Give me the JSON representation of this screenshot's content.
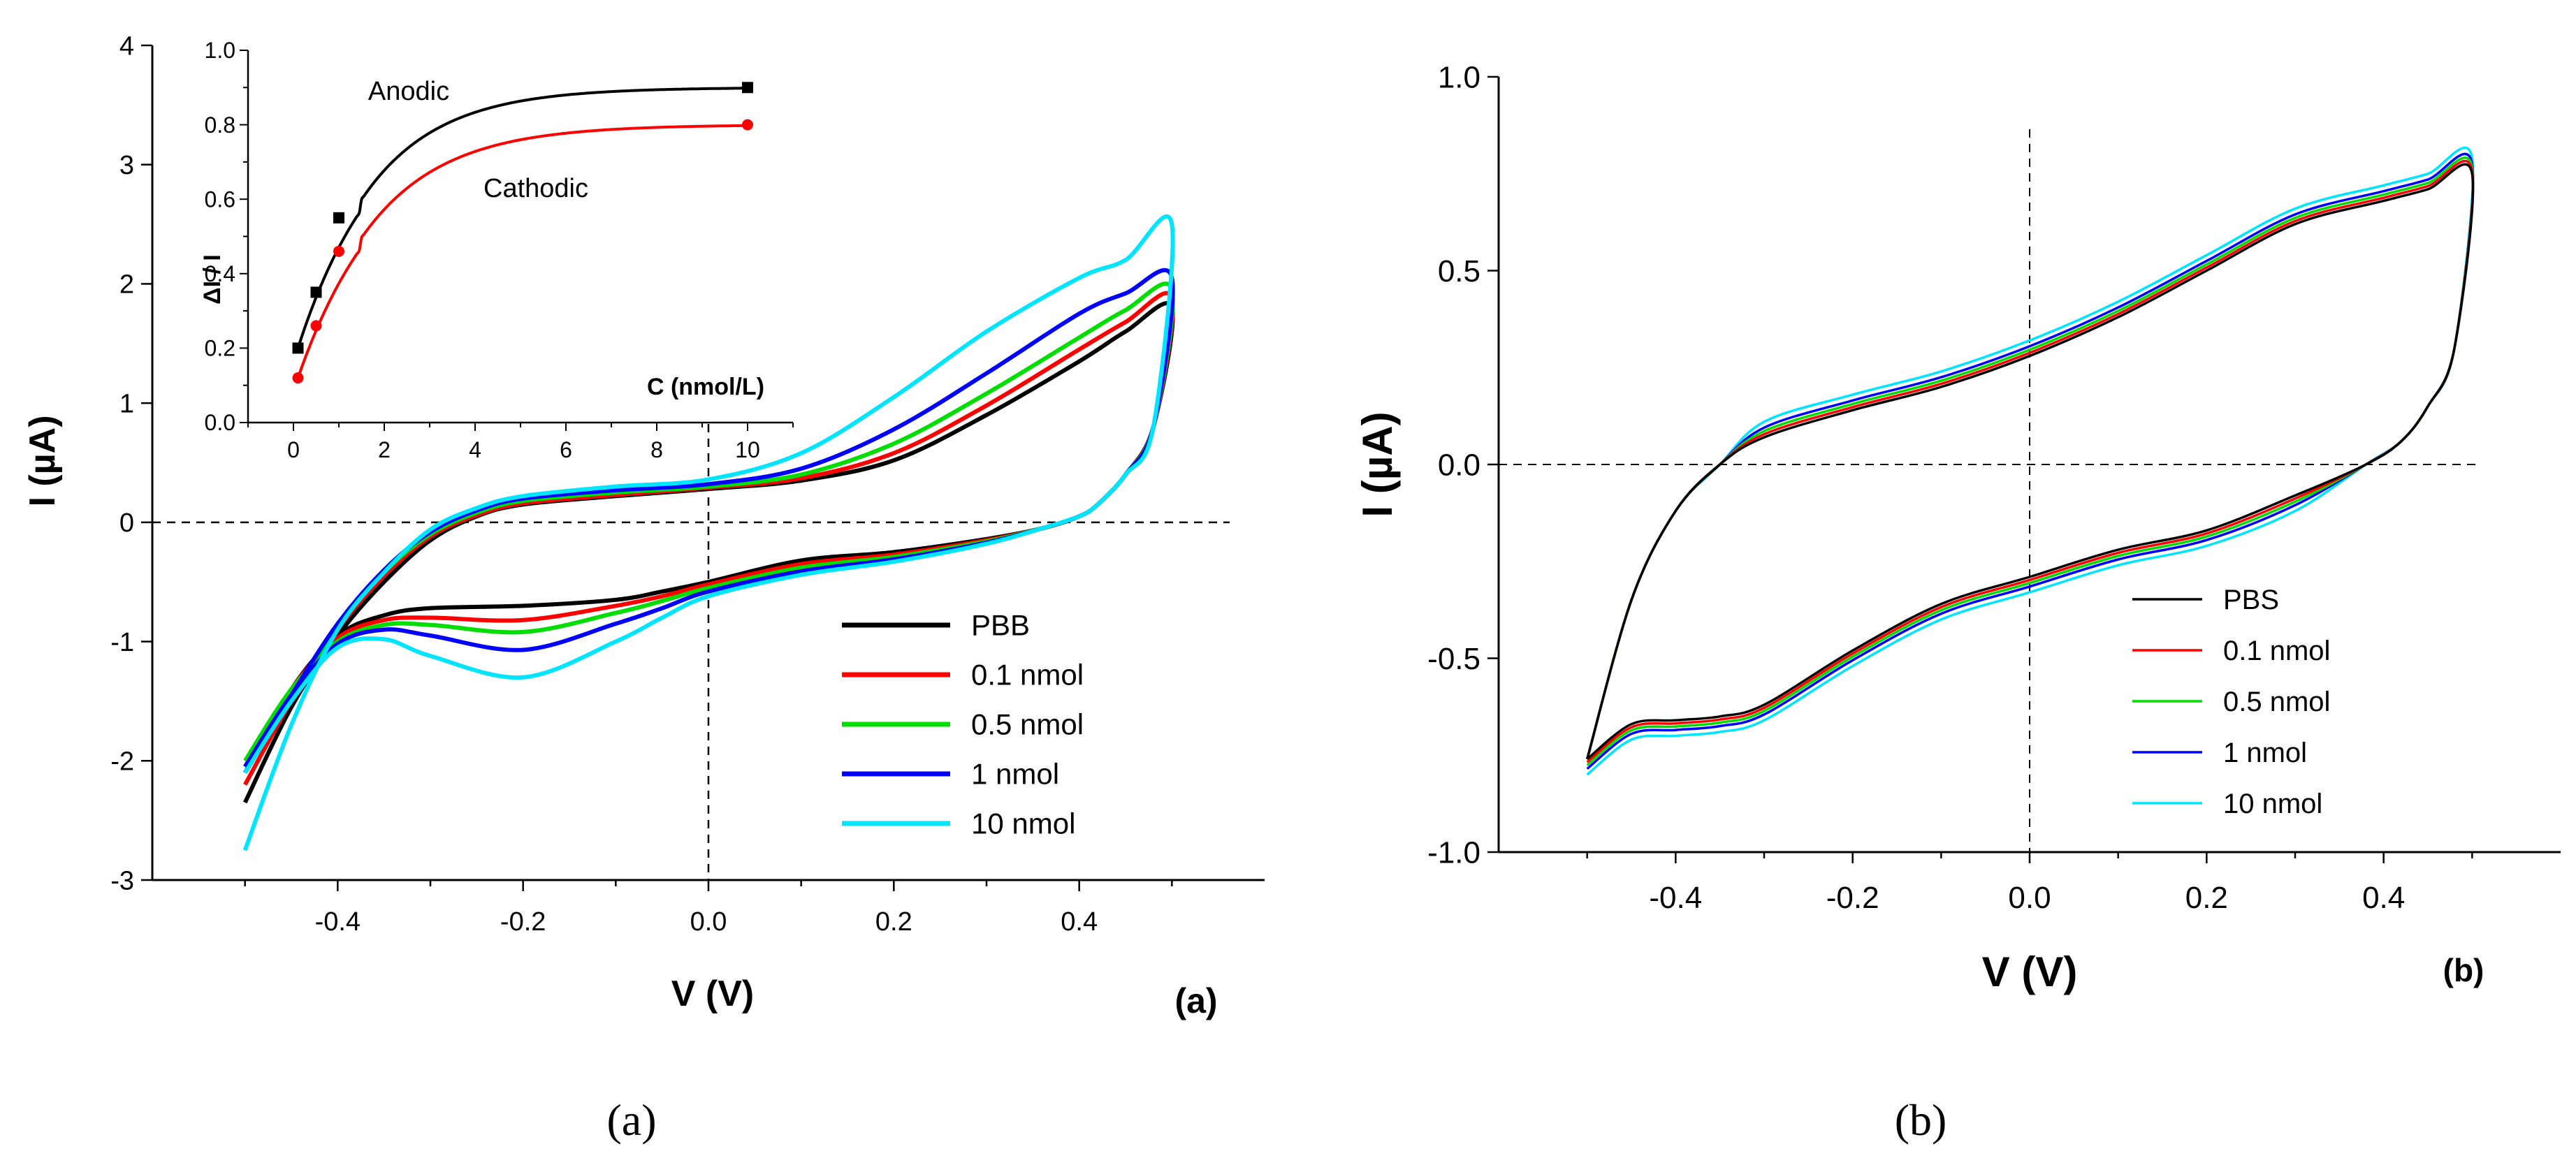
{
  "chart_data": [
    {
      "type": "line",
      "panel": "a",
      "panel_label": "(a)",
      "caption": "(a)",
      "xlabel": "V (V)",
      "ylabel": "I (µA)",
      "xlim": [
        -0.6,
        0.6
      ],
      "ylim": [
        -3,
        4
      ],
      "xticks": [
        -0.4,
        -0.2,
        0.0,
        0.2,
        0.4
      ],
      "xtick_labels": [
        "-0.4",
        "-0.2",
        "0.0",
        "0.2",
        "0.4"
      ],
      "yticks": [
        -3,
        -2,
        -1,
        0,
        1,
        2,
        3,
        4
      ],
      "ytick_labels": [
        "-3",
        "-2",
        "-1",
        "0",
        "1",
        "2",
        "3",
        "4"
      ],
      "legend_position": "bottom-right",
      "legend": [
        "PBB",
        "0.1 nmol",
        "0.5 nmol",
        "1 nmol",
        "10 nmol"
      ],
      "series": [
        {
          "name": "PBB",
          "color": "#000000",
          "forward": [
            [
              -0.5,
              -2.35
            ],
            [
              -0.45,
              -1.55
            ],
            [
              -0.4,
              -0.95
            ],
            [
              -0.35,
              -0.5
            ],
            [
              -0.3,
              -0.15
            ],
            [
              -0.25,
              0.05
            ],
            [
              -0.2,
              0.15
            ],
            [
              -0.1,
              0.22
            ],
            [
              0.0,
              0.28
            ],
            [
              0.1,
              0.35
            ],
            [
              0.2,
              0.52
            ],
            [
              0.3,
              0.9
            ],
            [
              0.4,
              1.35
            ],
            [
              0.45,
              1.6
            ],
            [
              0.5,
              1.8
            ]
          ],
          "reverse": [
            [
              0.5,
              1.8
            ],
            [
              0.48,
              0.8
            ],
            [
              0.45,
              0.4
            ],
            [
              0.42,
              0.15
            ],
            [
              0.4,
              0.05
            ],
            [
              0.36,
              -0.05
            ],
            [
              0.3,
              -0.14
            ],
            [
              0.2,
              -0.25
            ],
            [
              0.1,
              -0.32
            ],
            [
              0.0,
              -0.5
            ],
            [
              -0.05,
              -0.58
            ],
            [
              -0.1,
              -0.65
            ],
            [
              -0.2,
              -0.7
            ],
            [
              -0.3,
              -0.72
            ],
            [
              -0.35,
              -0.78
            ],
            [
              -0.4,
              -0.95
            ],
            [
              -0.45,
              -1.4
            ],
            [
              -0.5,
              -2.1
            ]
          ]
        },
        {
          "name": "0.1 nmol",
          "color": "#ff0000",
          "forward": [
            [
              -0.5,
              -2.2
            ],
            [
              -0.45,
              -1.5
            ],
            [
              -0.4,
              -0.9
            ],
            [
              -0.35,
              -0.45
            ],
            [
              -0.3,
              -0.12
            ],
            [
              -0.25,
              0.06
            ],
            [
              -0.2,
              0.16
            ],
            [
              -0.1,
              0.23
            ],
            [
              0.0,
              0.29
            ],
            [
              0.1,
              0.37
            ],
            [
              0.2,
              0.58
            ],
            [
              0.3,
              0.98
            ],
            [
              0.4,
              1.45
            ],
            [
              0.45,
              1.68
            ],
            [
              0.5,
              1.88
            ]
          ],
          "reverse": [
            [
              0.5,
              1.88
            ],
            [
              0.48,
              0.8
            ],
            [
              0.45,
              0.4
            ],
            [
              0.42,
              0.15
            ],
            [
              0.4,
              0.05
            ],
            [
              0.36,
              -0.05
            ],
            [
              0.3,
              -0.15
            ],
            [
              0.2,
              -0.27
            ],
            [
              0.1,
              -0.35
            ],
            [
              0.0,
              -0.52
            ],
            [
              -0.05,
              -0.62
            ],
            [
              -0.1,
              -0.7
            ],
            [
              -0.2,
              -0.82
            ],
            [
              -0.3,
              -0.8
            ],
            [
              -0.35,
              -0.82
            ],
            [
              -0.4,
              -0.97
            ],
            [
              -0.45,
              -1.4
            ],
            [
              -0.5,
              -2.05
            ]
          ]
        },
        {
          "name": "0.5 nmol",
          "color": "#00dd00",
          "forward": [
            [
              -0.5,
              -2.05
            ],
            [
              -0.45,
              -1.45
            ],
            [
              -0.4,
              -0.88
            ],
            [
              -0.35,
              -0.42
            ],
            [
              -0.3,
              -0.1
            ],
            [
              -0.25,
              0.08
            ],
            [
              -0.2,
              0.18
            ],
            [
              -0.1,
              0.25
            ],
            [
              0.0,
              0.3
            ],
            [
              0.1,
              0.4
            ],
            [
              0.2,
              0.66
            ],
            [
              0.3,
              1.08
            ],
            [
              0.4,
              1.55
            ],
            [
              0.45,
              1.78
            ],
            [
              0.5,
              1.95
            ]
          ],
          "reverse": [
            [
              0.5,
              1.95
            ],
            [
              0.48,
              0.8
            ],
            [
              0.45,
              0.4
            ],
            [
              0.42,
              0.15
            ],
            [
              0.4,
              0.05
            ],
            [
              0.36,
              -0.05
            ],
            [
              0.3,
              -0.16
            ],
            [
              0.2,
              -0.29
            ],
            [
              0.1,
              -0.38
            ],
            [
              0.0,
              -0.55
            ],
            [
              -0.05,
              -0.66
            ],
            [
              -0.1,
              -0.76
            ],
            [
              -0.2,
              -0.92
            ],
            [
              -0.3,
              -0.86
            ],
            [
              -0.35,
              -0.86
            ],
            [
              -0.4,
              -1.0
            ],
            [
              -0.45,
              -1.4
            ],
            [
              -0.5,
              -2.0
            ]
          ]
        },
        {
          "name": "1 nmol",
          "color": "#0000ff",
          "forward": [
            [
              -0.5,
              -2.1
            ],
            [
              -0.45,
              -1.45
            ],
            [
              -0.4,
              -0.85
            ],
            [
              -0.35,
              -0.4
            ],
            [
              -0.3,
              -0.08
            ],
            [
              -0.25,
              0.1
            ],
            [
              -0.2,
              0.2
            ],
            [
              -0.1,
              0.27
            ],
            [
              0.0,
              0.32
            ],
            [
              0.1,
              0.45
            ],
            [
              0.2,
              0.78
            ],
            [
              0.3,
              1.25
            ],
            [
              0.4,
              1.75
            ],
            [
              0.45,
              1.92
            ],
            [
              0.5,
              2.05
            ]
          ],
          "reverse": [
            [
              0.5,
              2.05
            ],
            [
              0.48,
              0.8
            ],
            [
              0.45,
              0.4
            ],
            [
              0.42,
              0.15
            ],
            [
              0.4,
              0.05
            ],
            [
              0.36,
              -0.05
            ],
            [
              0.3,
              -0.17
            ],
            [
              0.2,
              -0.31
            ],
            [
              0.1,
              -0.41
            ],
            [
              0.0,
              -0.58
            ],
            [
              -0.05,
              -0.72
            ],
            [
              -0.1,
              -0.85
            ],
            [
              -0.2,
              -1.07
            ],
            [
              -0.3,
              -0.95
            ],
            [
              -0.35,
              -0.9
            ],
            [
              -0.4,
              -1.02
            ],
            [
              -0.45,
              -1.45
            ],
            [
              -0.5,
              -2.05
            ]
          ]
        },
        {
          "name": "10 nmol",
          "color": "#00e5ff",
          "forward": [
            [
              -0.5,
              -2.75
            ],
            [
              -0.45,
              -1.7
            ],
            [
              -0.4,
              -0.9
            ],
            [
              -0.35,
              -0.42
            ],
            [
              -0.3,
              -0.06
            ],
            [
              -0.25,
              0.12
            ],
            [
              -0.2,
              0.22
            ],
            [
              -0.1,
              0.3
            ],
            [
              0.0,
              0.36
            ],
            [
              0.1,
              0.58
            ],
            [
              0.2,
              1.05
            ],
            [
              0.3,
              1.6
            ],
            [
              0.4,
              2.05
            ],
            [
              0.45,
              2.2
            ],
            [
              0.5,
              2.5
            ]
          ],
          "reverse": [
            [
              0.5,
              2.5
            ],
            [
              0.48,
              0.8
            ],
            [
              0.45,
              0.4
            ],
            [
              0.42,
              0.15
            ],
            [
              0.4,
              0.05
            ],
            [
              0.36,
              -0.05
            ],
            [
              0.3,
              -0.18
            ],
            [
              0.2,
              -0.33
            ],
            [
              0.1,
              -0.44
            ],
            [
              0.0,
              -0.62
            ],
            [
              -0.05,
              -0.8
            ],
            [
              -0.1,
              -1.0
            ],
            [
              -0.2,
              -1.3
            ],
            [
              -0.3,
              -1.12
            ],
            [
              -0.35,
              -0.98
            ],
            [
              -0.4,
              -1.05
            ],
            [
              -0.45,
              -1.5
            ],
            [
              -0.5,
              -2.1
            ]
          ]
        }
      ]
    },
    {
      "type": "line",
      "panel": "a-inset",
      "xlabel": "C (nmol/L)",
      "ylabel": "ΔI / I",
      "xlim": [
        -1,
        11
      ],
      "ylim": [
        0,
        1
      ],
      "xticks": [
        0,
        2,
        4,
        6,
        8,
        10
      ],
      "xtick_labels": [
        "0",
        "2",
        "4",
        "6",
        "8",
        "10"
      ],
      "yticks": [
        0,
        0.2,
        0.4,
        0.6,
        0.8,
        1.0
      ],
      "ytick_labels": [
        "0.0",
        "0.2",
        "0.4",
        "0.6",
        "0.8",
        "1.0"
      ],
      "series": [
        {
          "name": "Anodic",
          "color": "#000000",
          "marker": "square",
          "points": [
            [
              0.1,
              0.2
            ],
            [
              0.5,
              0.35
            ],
            [
              1,
              0.55
            ],
            [
              10,
              0.9
            ]
          ],
          "fit_asymptote": 0.9
        },
        {
          "name": "Cathodic",
          "color": "#ff0000",
          "marker": "circle",
          "points": [
            [
              0.1,
              0.12
            ],
            [
              0.5,
              0.26
            ],
            [
              1,
              0.46
            ],
            [
              10,
              0.8
            ]
          ],
          "fit_asymptote": 0.8
        }
      ]
    },
    {
      "type": "line",
      "panel": "b",
      "panel_label": "(b)",
      "caption": "(b)",
      "xlabel": "V (V)",
      "ylabel": "I (µA)",
      "xlim": [
        -0.6,
        0.6
      ],
      "ylim": [
        -1,
        1
      ],
      "xticks": [
        -0.4,
        -0.2,
        0.0,
        0.2,
        0.4
      ],
      "xtick_labels": [
        "-0.4",
        "-0.2",
        "0.0",
        "0.2",
        "0.4"
      ],
      "yticks": [
        -1.0,
        -0.5,
        0.0,
        0.5,
        1.0
      ],
      "ytick_labels": [
        "-1.0",
        "-0.5",
        "0.0",
        "0.5",
        "1.0"
      ],
      "legend_position": "bottom-right",
      "legend": [
        "PBS",
        "0.1 nmol",
        "0.5 nmol",
        "1   nmol",
        "10  nmol"
      ],
      "base_curve": {
        "forward": [
          [
            -0.5,
            -0.76
          ],
          [
            -0.45,
            -0.35
          ],
          [
            -0.4,
            -0.12
          ],
          [
            -0.35,
            0.0
          ],
          [
            -0.3,
            0.07
          ],
          [
            -0.2,
            0.14
          ],
          [
            -0.1,
            0.2
          ],
          [
            0.0,
            0.28
          ],
          [
            0.1,
            0.38
          ],
          [
            0.2,
            0.5
          ],
          [
            0.3,
            0.62
          ],
          [
            0.4,
            0.68
          ],
          [
            0.45,
            0.71
          ],
          [
            0.5,
            0.75
          ]
        ],
        "reverse": [
          [
            0.5,
            0.75
          ],
          [
            0.48,
            0.3
          ],
          [
            0.45,
            0.15
          ],
          [
            0.42,
            0.06
          ],
          [
            0.38,
            0.0
          ],
          [
            0.3,
            -0.08
          ],
          [
            0.2,
            -0.17
          ],
          [
            0.1,
            -0.22
          ],
          [
            0.0,
            -0.29
          ],
          [
            -0.1,
            -0.36
          ],
          [
            -0.2,
            -0.48
          ],
          [
            -0.3,
            -0.62
          ],
          [
            -0.35,
            -0.65
          ],
          [
            -0.4,
            -0.66
          ],
          [
            -0.45,
            -0.67
          ],
          [
            -0.5,
            -0.76
          ]
        ]
      },
      "series": [
        {
          "name": "PBS",
          "color": "#000000",
          "offset": 0.0
        },
        {
          "name": "0.1 nmol",
          "color": "#ff0000",
          "offset": 0.008
        },
        {
          "name": "0.5 nmol",
          "color": "#00dd00",
          "offset": 0.016
        },
        {
          "name": "1   nmol",
          "color": "#0000ff",
          "offset": 0.025
        },
        {
          "name": "10  nmol",
          "color": "#00e5ff",
          "offset": 0.04
        }
      ]
    }
  ]
}
